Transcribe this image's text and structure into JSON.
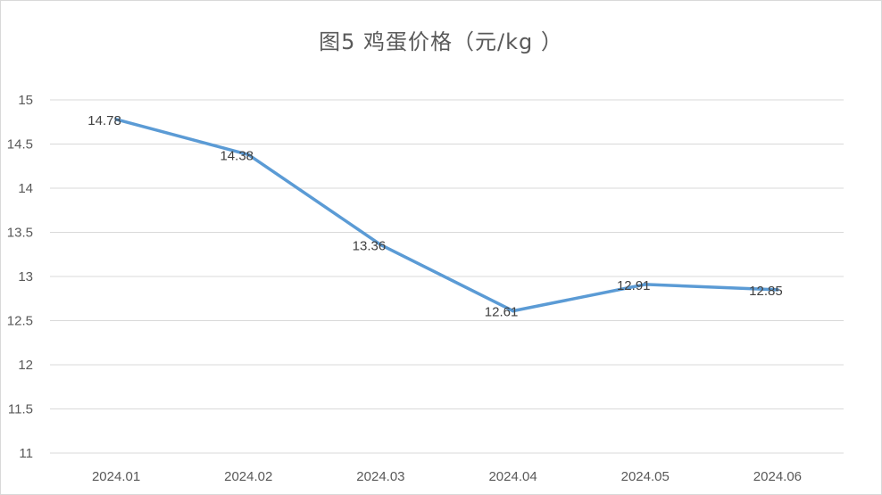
{
  "chart_data": {
    "type": "line",
    "title": "图5  鸡蛋价格（元/kg ）",
    "xlabel": "",
    "ylabel": "",
    "categories": [
      "2024.01",
      "2024.02",
      "2024.03",
      "2024.04",
      "2024.05",
      "2024.06"
    ],
    "series": [
      {
        "values": [
          14.78,
          14.38,
          13.36,
          12.61,
          12.91,
          12.85
        ],
        "labels": [
          "14.78",
          "14.38",
          "13.36",
          "12.61",
          "12.91",
          "12.85"
        ],
        "color": "#5b9bd5"
      }
    ],
    "ylim": [
      11,
      15
    ],
    "yticks": [
      {
        "value": 15,
        "label": "15"
      },
      {
        "value": 14.5,
        "label": "14.5"
      },
      {
        "value": 14,
        "label": "14"
      },
      {
        "value": 13.5,
        "label": "13.5"
      },
      {
        "value": 13,
        "label": "13"
      },
      {
        "value": 12.5,
        "label": "12.5"
      },
      {
        "value": 12,
        "label": "12"
      },
      {
        "value": 11.5,
        "label": "11.5"
      },
      {
        "value": 11,
        "label": "11"
      }
    ],
    "grid": true,
    "legend": "none",
    "colors": {
      "line": "#5b9bd5",
      "grid": "#d9d9d9",
      "axis_text": "#595959",
      "label_text": "#404040"
    }
  }
}
